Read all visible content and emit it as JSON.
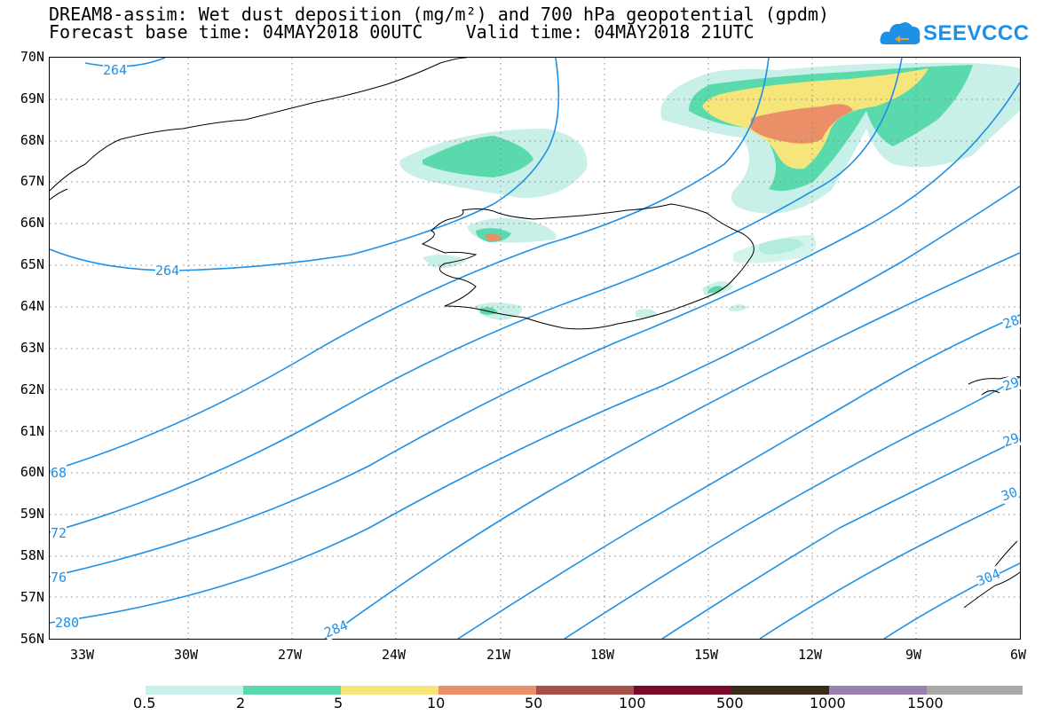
{
  "title": {
    "line1": "DREAM8-assim: Wet dust deposition (mg/m²) and 700 hPa geopotential (gpdm)",
    "line2": "Forecast base time: 04MAY2018 00UTC    Valid time: 04MAY2018 21UTC"
  },
  "logo": {
    "text": "SEEVCCC",
    "icon": "cloud-icon",
    "color": "#1e90e6"
  },
  "axes": {
    "lat_labels": [
      "70N",
      "69N",
      "68N",
      "67N",
      "66N",
      "65N",
      "64N",
      "63N",
      "62N",
      "61N",
      "60N",
      "59N",
      "58N",
      "57N",
      "56N"
    ],
    "lon_labels": [
      "33W",
      "30W",
      "27W",
      "24W",
      "21W",
      "18W",
      "15W",
      "12W",
      "9W",
      "6W"
    ]
  },
  "contour_labels": [
    "264",
    "264",
    "68",
    "72",
    "76",
    "280",
    "284",
    "28",
    "29",
    "29",
    "30",
    "304"
  ],
  "legend": {
    "labels": [
      "0.5",
      "2",
      "5",
      "10",
      "50",
      "100",
      "500",
      "1000",
      "1500"
    ],
    "colors": [
      "#c8f0e8",
      "#5ad9ac",
      "#f5e57a",
      "#ea8f68",
      "#a8514a",
      "#7a0a2a",
      "#3a2a1a",
      "#9a80b0",
      "#a8a8a8"
    ]
  },
  "contour_color": "#1e90e6"
}
